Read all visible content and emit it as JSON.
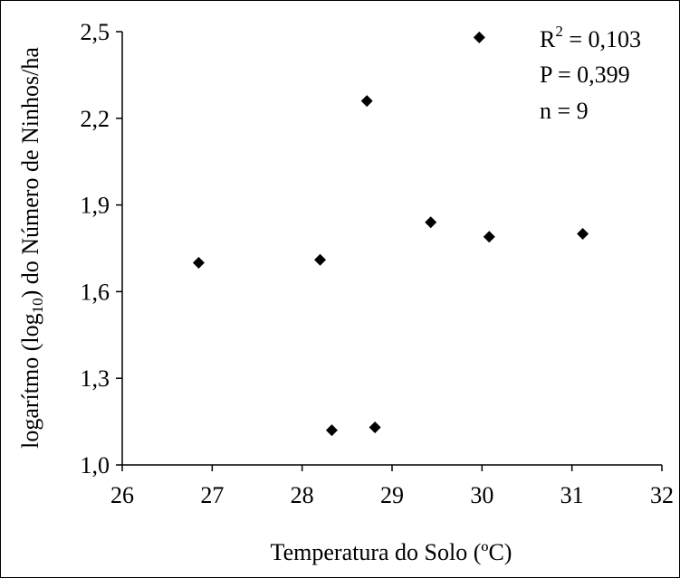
{
  "chart_data": {
    "type": "scatter",
    "xlabel": "Temperatura do Solo (ºC)",
    "ylabel_main": "logarítmo (log",
    "ylabel_sub": "10",
    "ylabel_rest": ") do Número de Ninhos/ha",
    "xlim": [
      26,
      32
    ],
    "ylim": [
      1.0,
      2.5
    ],
    "x_ticks": [
      "26",
      "27",
      "28",
      "29",
      "30",
      "31",
      "32"
    ],
    "y_ticks": [
      "1,0",
      "1,3",
      "1,6",
      "1,9",
      "2,2",
      "2,5"
    ],
    "grid": false,
    "marker": "diamond",
    "marker_color": "#000000",
    "points": [
      {
        "x": 26.85,
        "y": 1.7
      },
      {
        "x": 28.2,
        "y": 1.71
      },
      {
        "x": 28.33,
        "y": 1.12
      },
      {
        "x": 28.72,
        "y": 2.26
      },
      {
        "x": 28.81,
        "y": 1.13
      },
      {
        "x": 29.43,
        "y": 1.84
      },
      {
        "x": 29.97,
        "y": 2.48
      },
      {
        "x": 30.08,
        "y": 1.79
      },
      {
        "x": 31.12,
        "y": 1.8
      }
    ],
    "annotations": {
      "r2_base": "R",
      "r2_sup": "2",
      "r2_value": " = 0,103",
      "p_text": "P = 0,399",
      "n_text": "n  = 9"
    }
  }
}
